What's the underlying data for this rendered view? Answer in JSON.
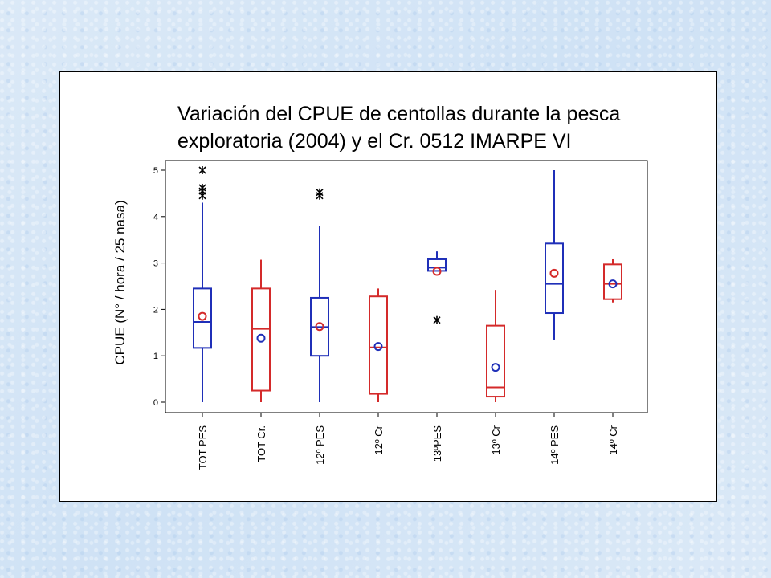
{
  "chart_data": {
    "type": "box",
    "title_lines": [
      "Variación del CPUE de centollas durante la pesca",
      "exploratoria (2004) y  el Cr. 0512 IMARPE VI"
    ],
    "ylabel": "CPUE (N° / hora / 25 nasa)",
    "ylim": [
      -0.2,
      5.2
    ],
    "yticks": [
      0,
      1,
      2,
      3,
      4,
      5
    ],
    "yticks_labels": [
      "0",
      "1",
      "2",
      "3",
      "4",
      "5"
    ],
    "categories": [
      "TOT PES",
      "TOT Cr.",
      "12º PES",
      "12º Cr",
      "13ºPES",
      "13º Cr",
      "14º PES",
      "14º Cr"
    ],
    "boxes": [
      {
        "category": "TOT PES",
        "color": "#1f2fb8",
        "whisker_low": 0,
        "q1": 1.17,
        "median": 1.73,
        "q3": 2.45,
        "whisker_high": 4.3,
        "mean": 1.85,
        "mean_color": "#d42a2a",
        "outliers": [
          4.45,
          4.55,
          4.62,
          5.0
        ]
      },
      {
        "category": "TOT Cr.",
        "color": "#d42a2a",
        "whisker_low": 0,
        "q1": 0.25,
        "median": 1.58,
        "q3": 2.45,
        "whisker_high": 3.07,
        "mean": 1.38,
        "mean_color": "#1f2fb8",
        "outliers": []
      },
      {
        "category": "12º PES",
        "color": "#1f2fb8",
        "whisker_low": 0,
        "q1": 1.0,
        "median": 1.62,
        "q3": 2.25,
        "whisker_high": 3.8,
        "mean": 1.63,
        "mean_color": "#d42a2a",
        "outliers": [
          4.45,
          4.52
        ]
      },
      {
        "category": "12º Cr",
        "color": "#d42a2a",
        "whisker_low": 0,
        "q1": 0.18,
        "median": 1.18,
        "q3": 2.28,
        "whisker_high": 2.45,
        "mean": 1.2,
        "mean_color": "#1f2fb8",
        "outliers": []
      },
      {
        "category": "13ºPES",
        "color": "#1f2fb8",
        "whisker_low": 2.83,
        "q1": 2.83,
        "median": 2.9,
        "q3": 3.08,
        "whisker_high": 3.25,
        "mean": 2.82,
        "mean_color": "#d42a2a",
        "outliers": [
          1.77
        ]
      },
      {
        "category": "13º Cr",
        "color": "#d42a2a",
        "whisker_low": 0,
        "q1": 0.12,
        "median": 0.32,
        "q3": 1.65,
        "whisker_high": 2.42,
        "mean": 0.75,
        "mean_color": "#1f2fb8",
        "outliers": []
      },
      {
        "category": "14º PES",
        "color": "#1f2fb8",
        "whisker_low": 1.35,
        "q1": 1.92,
        "median": 2.55,
        "q3": 3.42,
        "whisker_high": 5.0,
        "mean": 2.78,
        "mean_color": "#d42a2a",
        "outliers": []
      },
      {
        "category": "14º Cr",
        "color": "#d42a2a",
        "whisker_low": 2.15,
        "q1": 2.22,
        "median": 2.55,
        "q3": 2.97,
        "whisker_high": 3.08,
        "mean": 2.55,
        "mean_color": "#1f2fb8",
        "outliers": []
      }
    ],
    "grid": false
  }
}
